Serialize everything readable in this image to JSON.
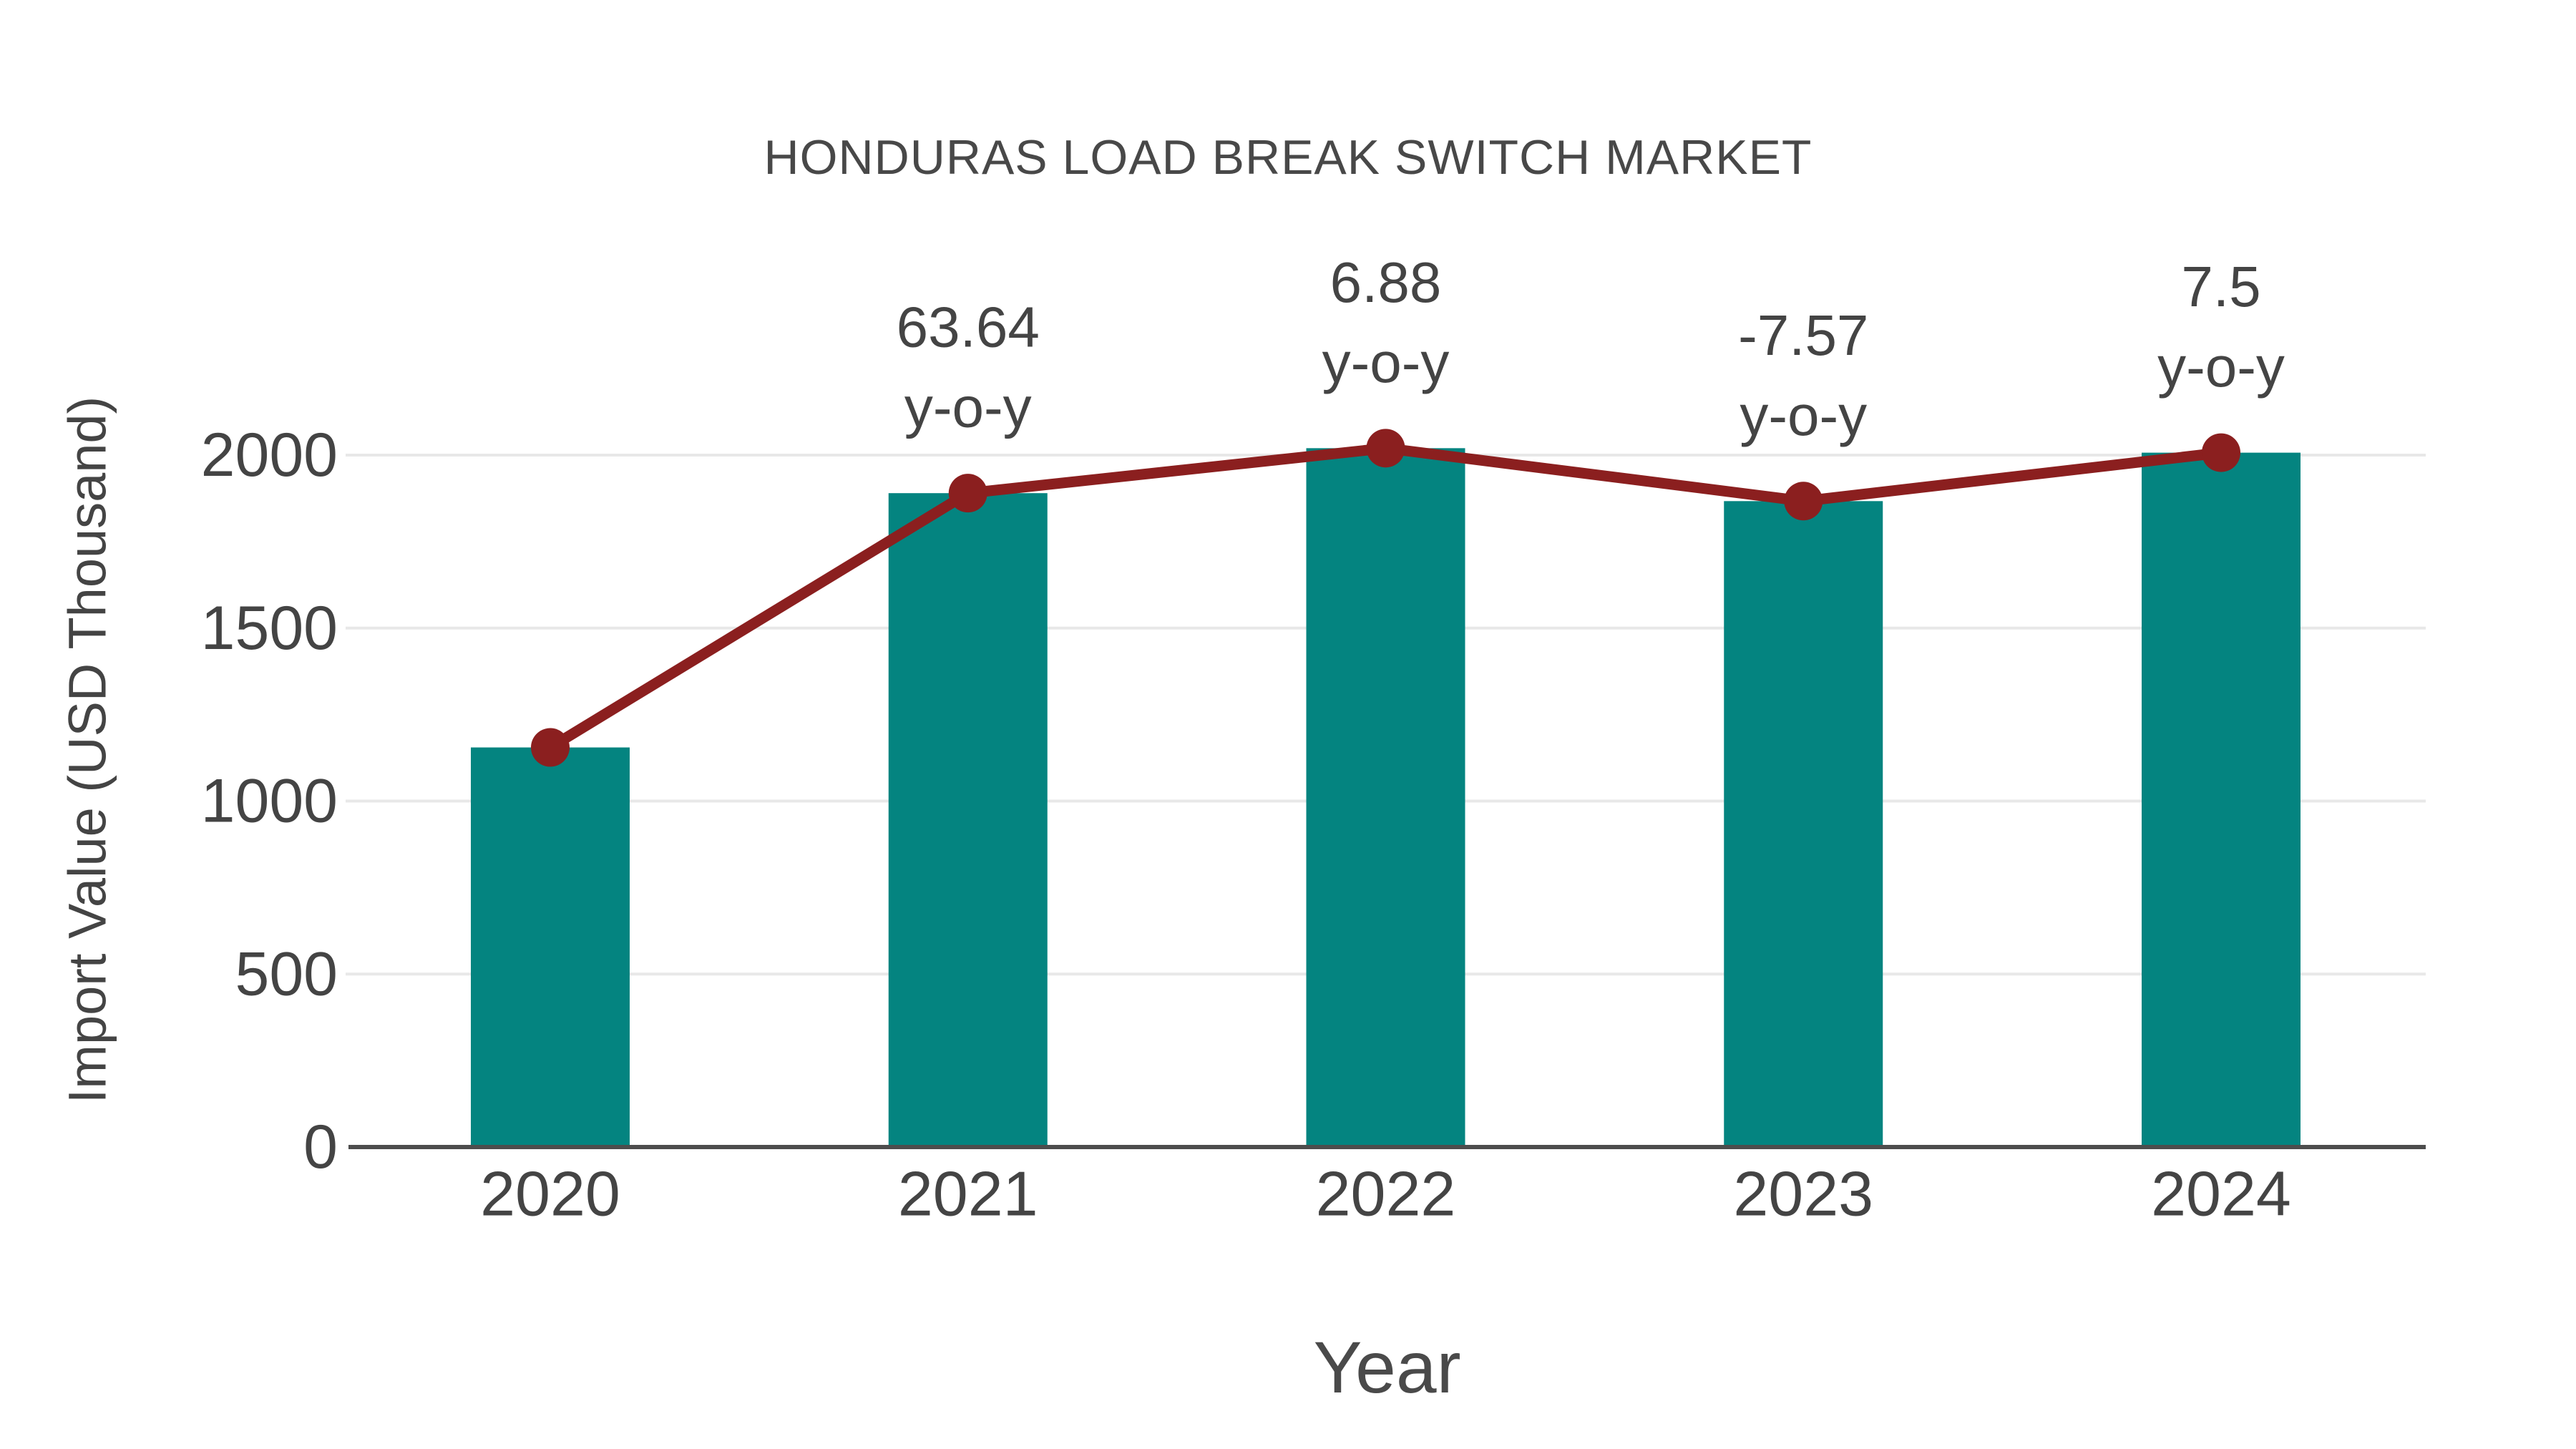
{
  "chart_data": {
    "type": "bar",
    "title": "HONDURAS LOAD BREAK SWITCH MARKET",
    "xlabel": "Year",
    "ylabel": "Import Value (USD Thousand)",
    "categories": [
      "2020",
      "2021",
      "2022",
      "2023",
      "2024"
    ],
    "series": [
      {
        "name": "import-value-bars",
        "type": "bar",
        "color": "#048480",
        "values": [
          1155,
          1890,
          2020,
          1867,
          2007
        ]
      },
      {
        "name": "import-value-trend-line",
        "type": "line",
        "color": "#8B1F1F",
        "values": [
          1155,
          1890,
          2020,
          1867,
          2007
        ]
      }
    ],
    "annotations": [
      {
        "category": "2021",
        "value": "63.64",
        "suffix": "y-o-y"
      },
      {
        "category": "2022",
        "value": "6.88",
        "suffix": "y-o-y"
      },
      {
        "category": "2023",
        "value": "-7.57",
        "suffix": "y-o-y"
      },
      {
        "category": "2024",
        "value": "7.5",
        "suffix": "y-o-y"
      }
    ],
    "y_ticks": [
      0,
      500,
      1000,
      1500,
      2000
    ],
    "ylim": [
      0,
      2030
    ],
    "grid": true,
    "legend": "none",
    "colors": {
      "text": "#444444",
      "axis": "#4d4d4d",
      "grid": "#e8e8e8",
      "background": "#ffffff"
    }
  }
}
